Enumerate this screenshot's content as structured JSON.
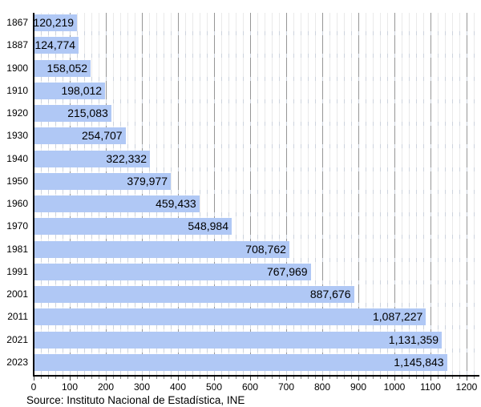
{
  "chart_data": {
    "type": "bar",
    "orientation": "horizontal",
    "title": "",
    "xlabel": "",
    "ylabel": "",
    "categories": [
      "1867",
      "1887",
      "1900",
      "1910",
      "1920",
      "1930",
      "1940",
      "1950",
      "1960",
      "1970",
      "1981",
      "1991",
      "2001",
      "2011",
      "2021",
      "2023"
    ],
    "values": [
      120219,
      124774,
      158052,
      198012,
      215083,
      254707,
      322332,
      379977,
      459433,
      548984,
      708762,
      767969,
      887676,
      1087227,
      1131359,
      1145843
    ],
    "value_labels": [
      "120,219",
      "124,774",
      "158,052",
      "198,012",
      "215,083",
      "254,707",
      "322,332",
      "379,977",
      "459,433",
      "548,984",
      "708,762",
      "767,969",
      "887,676",
      "1,087,227",
      "1,131,359",
      "1,145,843"
    ],
    "xlim": [
      0,
      1200
    ],
    "x_axis_unit_divisor": 1000,
    "x_tick_labels": [
      "0",
      "100",
      "200",
      "300",
      "400",
      "500",
      "600",
      "700",
      "800",
      "900",
      "1000",
      "1100",
      "1200"
    ],
    "x_minor_tick_step": 20,
    "grid": true,
    "legend": false,
    "bar_color": "#b0c8f5",
    "major_grid_color": "#969696",
    "minor_grid_color": "#eaeaea",
    "axis_color": "#000000"
  },
  "footer": {
    "source": "Source: Instituto Nacional de Estadística, INE"
  }
}
